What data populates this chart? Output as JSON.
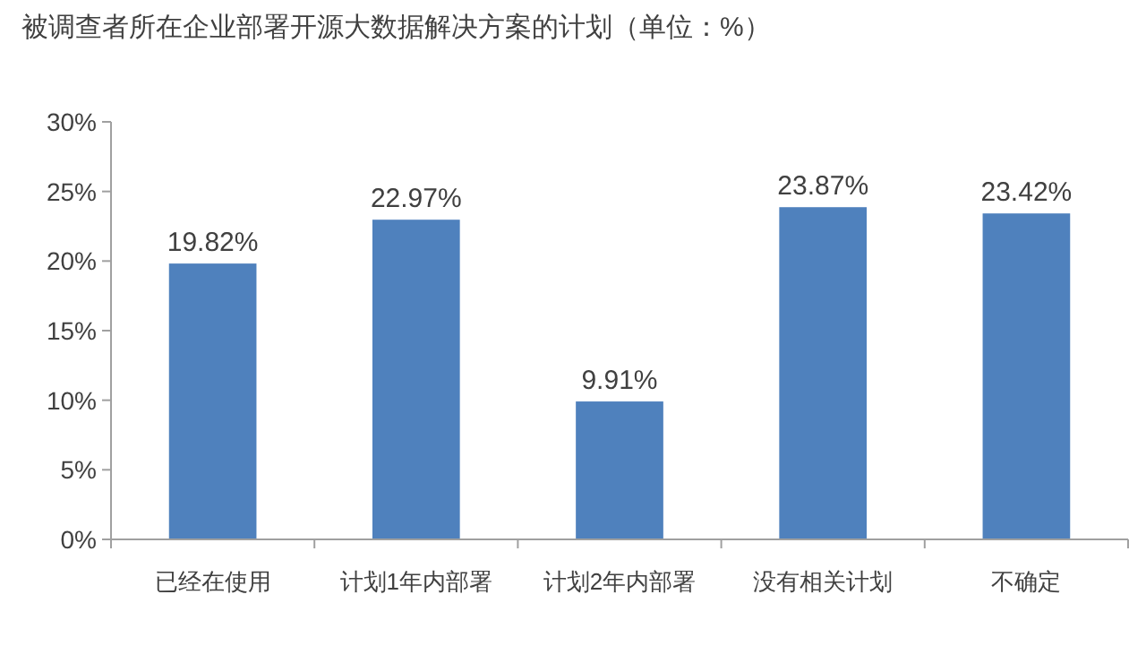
{
  "chart_data": {
    "type": "bar",
    "title": "被调查者所在企业部署开源大数据解决方案的计划（单位：%）",
    "categories": [
      "已经在使用",
      "计划1年内部署",
      "计划2年内部署",
      "没有相关计划",
      "不确定"
    ],
    "values": [
      19.82,
      22.97,
      9.91,
      23.87,
      23.42
    ],
    "value_labels": [
      "19.82%",
      "22.97%",
      "9.91%",
      "23.87%",
      "23.42%"
    ],
    "color": "#4f81bd",
    "ylim": [
      0,
      30
    ],
    "yticks": [
      {
        "value": 0,
        "label": "0%"
      },
      {
        "value": 5,
        "label": "5%"
      },
      {
        "value": 10,
        "label": "10%"
      },
      {
        "value": 15,
        "label": "15%"
      },
      {
        "value": 20,
        "label": "20%"
      },
      {
        "value": 25,
        "label": "25%"
      },
      {
        "value": 30,
        "label": "30%"
      }
    ]
  }
}
